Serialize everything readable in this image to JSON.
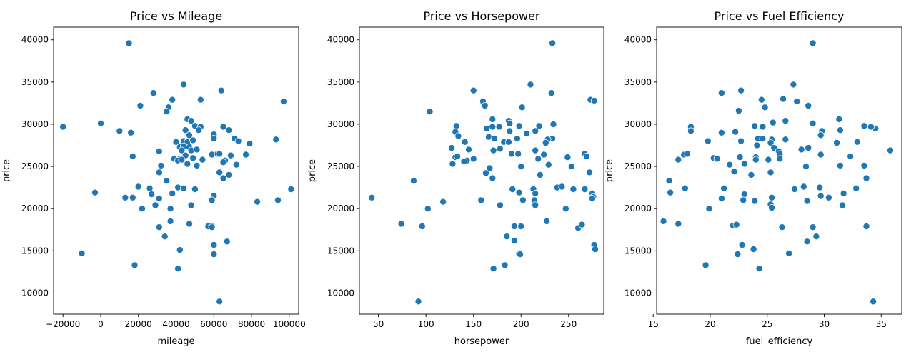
{
  "figure": {
    "marker_color": "#1f77b4",
    "marker_edge_color": "#ffffff"
  },
  "chart_data": [
    {
      "type": "scatter",
      "title": "Price vs Mileage",
      "xlabel": "mileage",
      "ylabel": "price",
      "xlim": [
        -25000,
        105000
      ],
      "ylim": [
        7500,
        41500
      ],
      "xticks": [
        -20000,
        0,
        20000,
        40000,
        60000,
        80000,
        100000
      ],
      "xtick_labels": [
        "−20000",
        "0",
        "20000",
        "40000",
        "60000",
        "80000",
        "100000"
      ],
      "yticks": [
        10000,
        15000,
        20000,
        25000,
        30000,
        35000,
        40000
      ],
      "ytick_labels": [
        "10000",
        "15000",
        "20000",
        "25000",
        "30000",
        "35000",
        "40000"
      ],
      "grid": false,
      "points": [
        [
          15000,
          39600
        ],
        [
          44000,
          34700
        ],
        [
          64000,
          34000
        ],
        [
          28000,
          33700
        ],
        [
          53000,
          32900
        ],
        [
          97000,
          32700
        ],
        [
          38000,
          32900
        ],
        [
          21000,
          32200
        ],
        [
          36000,
          32000
        ],
        [
          35000,
          31500
        ],
        [
          46000,
          30600
        ],
        [
          48000,
          30400
        ],
        [
          -20000,
          29700
        ],
        [
          0,
          30100
        ],
        [
          50000,
          29800
        ],
        [
          53000,
          29700
        ],
        [
          65000,
          29700
        ],
        [
          10000,
          29200
        ],
        [
          16000,
          29000
        ],
        [
          45000,
          29300
        ],
        [
          52000,
          29300
        ],
        [
          68000,
          29300
        ],
        [
          47000,
          28700
        ],
        [
          60000,
          28800
        ],
        [
          44000,
          28000
        ],
        [
          71000,
          28300
        ],
        [
          40000,
          27900
        ],
        [
          46000,
          27900
        ],
        [
          49000,
          28100
        ],
        [
          60000,
          28300
        ],
        [
          73000,
          28000
        ],
        [
          79000,
          27700
        ],
        [
          93000,
          28200
        ],
        [
          42000,
          27300
        ],
        [
          44000,
          27400
        ],
        [
          47000,
          27300
        ],
        [
          43000,
          26900
        ],
        [
          48000,
          26900
        ],
        [
          51000,
          27000
        ],
        [
          31000,
          26800
        ],
        [
          17000,
          26200
        ],
        [
          59000,
          26400
        ],
        [
          62000,
          26500
        ],
        [
          63000,
          26500
        ],
        [
          45000,
          26300
        ],
        [
          39000,
          25900
        ],
        [
          42000,
          25900
        ],
        [
          49000,
          26000
        ],
        [
          54000,
          25800
        ],
        [
          69000,
          26300
        ],
        [
          77000,
          26400
        ],
        [
          66000,
          25700
        ],
        [
          65000,
          25500
        ],
        [
          41000,
          25700
        ],
        [
          43000,
          25800
        ],
        [
          46000,
          25300
        ],
        [
          51000,
          25100
        ],
        [
          72000,
          25200
        ],
        [
          32000,
          25100
        ],
        [
          31000,
          24300
        ],
        [
          63000,
          24300
        ],
        [
          68000,
          24000
        ],
        [
          65000,
          23600
        ],
        [
          35000,
          23300
        ],
        [
          20000,
          22600
        ],
        [
          26000,
          22400
        ],
        [
          41000,
          22500
        ],
        [
          44000,
          22400
        ],
        [
          50000,
          22300
        ],
        [
          101000,
          22300
        ],
        [
          -3000,
          21900
        ],
        [
          27000,
          21700
        ],
        [
          38000,
          21800
        ],
        [
          13000,
          21300
        ],
        [
          17000,
          21300
        ],
        [
          31000,
          21200
        ],
        [
          60000,
          21500
        ],
        [
          59000,
          21000
        ],
        [
          94000,
          21000
        ],
        [
          83000,
          20800
        ],
        [
          29000,
          20400
        ],
        [
          48000,
          20400
        ],
        [
          22000,
          20000
        ],
        [
          37000,
          20000
        ],
        [
          37000,
          18500
        ],
        [
          47000,
          18200
        ],
        [
          57000,
          17900
        ],
        [
          59000,
          18000
        ],
        [
          59000,
          17800
        ],
        [
          31000,
          17800
        ],
        [
          34000,
          16700
        ],
        [
          67000,
          16100
        ],
        [
          60000,
          15700
        ],
        [
          42000,
          15100
        ],
        [
          60000,
          14600
        ],
        [
          -10000,
          14700
        ],
        [
          18000,
          13300
        ],
        [
          41000,
          12900
        ],
        [
          63000,
          9000
        ]
      ]
    },
    {
      "type": "scatter",
      "title": "Price vs Horsepower",
      "xlabel": "horsepower",
      "ylabel": "price",
      "xlim": [
        30,
        287
      ],
      "ylim": [
        7500,
        41500
      ],
      "xticks": [
        50,
        100,
        150,
        200,
        250
      ],
      "xtick_labels": [
        "50",
        "100",
        "150",
        "200",
        "250"
      ],
      "yticks": [
        10000,
        15000,
        20000,
        25000,
        30000,
        35000,
        40000
      ],
      "ytick_labels": [
        "10000",
        "15000",
        "20000",
        "25000",
        "30000",
        "35000",
        "40000"
      ],
      "grid": false,
      "points": [
        [
          233,
          39600
        ],
        [
          150,
          34000
        ],
        [
          210,
          34700
        ],
        [
          232,
          33700
        ],
        [
          273,
          32900
        ],
        [
          277,
          32800
        ],
        [
          160,
          32700
        ],
        [
          162,
          32200
        ],
        [
          201,
          32000
        ],
        [
          104,
          31500
        ],
        [
          170,
          30600
        ],
        [
          187,
          30400
        ],
        [
          188,
          30100
        ],
        [
          234,
          30000
        ],
        [
          132,
          29800
        ],
        [
          164,
          29500
        ],
        [
          188,
          29200
        ],
        [
          215,
          29200
        ],
        [
          219,
          29800
        ],
        [
          198,
          29800
        ],
        [
          170,
          29700
        ],
        [
          177,
          29700
        ],
        [
          131,
          29100
        ],
        [
          134,
          28600
        ],
        [
          166,
          28500
        ],
        [
          172,
          28300
        ],
        [
          206,
          28900
        ],
        [
          233,
          28300
        ],
        [
          228,
          28200
        ],
        [
          226,
          27800
        ],
        [
          182,
          27900
        ],
        [
          187,
          27900
        ],
        [
          141,
          27900
        ],
        [
          196,
          28300
        ],
        [
          178,
          27100
        ],
        [
          127,
          27200
        ],
        [
          145,
          27000
        ],
        [
          171,
          26900
        ],
        [
          215,
          26900
        ],
        [
          190,
          26500
        ],
        [
          197,
          26500
        ],
        [
          224,
          26400
        ],
        [
          267,
          26500
        ],
        [
          269,
          26200
        ],
        [
          249,
          26100
        ],
        [
          131,
          26100
        ],
        [
          133,
          26200
        ],
        [
          143,
          25700
        ],
        [
          150,
          25900
        ],
        [
          128,
          25300
        ],
        [
          140,
          25600
        ],
        [
          218,
          25900
        ],
        [
          229,
          25200
        ],
        [
          253,
          25000
        ],
        [
          200,
          25000
        ],
        [
          167,
          24800
        ],
        [
          220,
          24000
        ],
        [
          163,
          24200
        ],
        [
          170,
          23600
        ],
        [
          272,
          24300
        ],
        [
          87,
          23300
        ],
        [
          191,
          22300
        ],
        [
          213,
          22300
        ],
        [
          238,
          22500
        ],
        [
          243,
          22600
        ],
        [
          255,
          22300
        ],
        [
          267,
          22300
        ],
        [
          198,
          21900
        ],
        [
          215,
          21800
        ],
        [
          275,
          21800
        ],
        [
          276,
          21400
        ],
        [
          275,
          21200
        ],
        [
          43,
          21300
        ],
        [
          158,
          21000
        ],
        [
          202,
          21000
        ],
        [
          214,
          21000
        ],
        [
          118,
          20800
        ],
        [
          178,
          20400
        ],
        [
          215,
          20400
        ],
        [
          247,
          20000
        ],
        [
          102,
          20000
        ],
        [
          227,
          18500
        ],
        [
          74,
          18200
        ],
        [
          193,
          17900
        ],
        [
          200,
          17900
        ],
        [
          96,
          17900
        ],
        [
          260,
          17700
        ],
        [
          264,
          18100
        ],
        [
          185,
          16700
        ],
        [
          193,
          16200
        ],
        [
          277,
          15700
        ],
        [
          278,
          15200
        ],
        [
          198,
          14700
        ],
        [
          199,
          14600
        ],
        [
          183,
          13300
        ],
        [
          171,
          12900
        ],
        [
          92,
          9000
        ]
      ]
    },
    {
      "type": "scatter",
      "title": "Price vs Fuel Efficiency",
      "xlabel": "fuel_efficiency",
      "ylabel": "price",
      "xlim": [
        15.3,
        36.8
      ],
      "ylim": [
        7500,
        41500
      ],
      "xticks": [
        15,
        20,
        25,
        30,
        35
      ],
      "xtick_labels": [
        "15",
        "20",
        "25",
        "30",
        "35"
      ],
      "yticks": [
        10000,
        15000,
        20000,
        25000,
        30000,
        35000,
        40000
      ],
      "ytick_labels": [
        "10000",
        "15000",
        "20000",
        "25000",
        "30000",
        "35000",
        "40000"
      ],
      "grid": false,
      "points": [
        [
          29.0,
          39600
        ],
        [
          27.3,
          34700
        ],
        [
          22.7,
          34000
        ],
        [
          21.0,
          33700
        ],
        [
          26.4,
          33000
        ],
        [
          24.5,
          32900
        ],
        [
          27.6,
          32700
        ],
        [
          28.6,
          32200
        ],
        [
          24.8,
          32000
        ],
        [
          22.5,
          31600
        ],
        [
          31.3,
          30600
        ],
        [
          26.6,
          30400
        ],
        [
          25.5,
          30200
        ],
        [
          29.0,
          30100
        ],
        [
          18.3,
          29700
        ],
        [
          23.9,
          29800
        ],
        [
          24.6,
          29700
        ],
        [
          33.5,
          29800
        ],
        [
          34.5,
          29500
        ],
        [
          34.1,
          29700
        ],
        [
          18.3,
          29200
        ],
        [
          29.8,
          29200
        ],
        [
          31.4,
          29300
        ],
        [
          21.0,
          29000
        ],
        [
          22.2,
          29100
        ],
        [
          29.7,
          28700
        ],
        [
          24.2,
          28300
        ],
        [
          24.6,
          28300
        ],
        [
          25.4,
          28200
        ],
        [
          26.6,
          28200
        ],
        [
          19.8,
          28000
        ],
        [
          22.7,
          28000
        ],
        [
          25.3,
          27800
        ],
        [
          31.1,
          27800
        ],
        [
          32.9,
          27900
        ],
        [
          24.1,
          27500
        ],
        [
          28.0,
          27000
        ],
        [
          28.6,
          27200
        ],
        [
          25.6,
          27200
        ],
        [
          26.0,
          26800
        ],
        [
          35.8,
          26900
        ],
        [
          17.7,
          26400
        ],
        [
          18.0,
          26500
        ],
        [
          26.1,
          26500
        ],
        [
          29.7,
          26400
        ],
        [
          32.3,
          26200
        ],
        [
          17.2,
          25800
        ],
        [
          20.3,
          26000
        ],
        [
          20.6,
          25900
        ],
        [
          22.6,
          26100
        ],
        [
          24.0,
          26100
        ],
        [
          24.0,
          25800
        ],
        [
          25.1,
          25800
        ],
        [
          26.1,
          25900
        ],
        [
          23.0,
          25300
        ],
        [
          21.7,
          25200
        ],
        [
          31.4,
          25100
        ],
        [
          33.5,
          25100
        ],
        [
          28.4,
          25000
        ],
        [
          22.1,
          24400
        ],
        [
          23.6,
          24000
        ],
        [
          25.3,
          24300
        ],
        [
          16.4,
          23300
        ],
        [
          33.7,
          23600
        ],
        [
          17.8,
          22400
        ],
        [
          21.2,
          22400
        ],
        [
          27.4,
          22300
        ],
        [
          28.2,
          22600
        ],
        [
          29.6,
          22500
        ],
        [
          32.8,
          22400
        ],
        [
          16.5,
          21900
        ],
        [
          23.0,
          21700
        ],
        [
          29.7,
          21500
        ],
        [
          31.7,
          21800
        ],
        [
          21.0,
          21200
        ],
        [
          23.9,
          20900
        ],
        [
          25.4,
          21300
        ],
        [
          28.5,
          20900
        ],
        [
          30.4,
          21300
        ],
        [
          22.9,
          21000
        ],
        [
          19.9,
          20000
        ],
        [
          25.3,
          20500
        ],
        [
          25.4,
          20100
        ],
        [
          31.6,
          20400
        ],
        [
          15.9,
          18500
        ],
        [
          17.2,
          18200
        ],
        [
          22.0,
          18000
        ],
        [
          22.3,
          18100
        ],
        [
          26.3,
          17800
        ],
        [
          29.0,
          17800
        ],
        [
          33.7,
          17900
        ],
        [
          28.5,
          16100
        ],
        [
          29.3,
          16700
        ],
        [
          22.8,
          15700
        ],
        [
          23.8,
          15200
        ],
        [
          22.4,
          14600
        ],
        [
          26.9,
          14700
        ],
        [
          19.6,
          13300
        ],
        [
          24.3,
          12900
        ],
        [
          34.3,
          9000
        ]
      ]
    }
  ]
}
